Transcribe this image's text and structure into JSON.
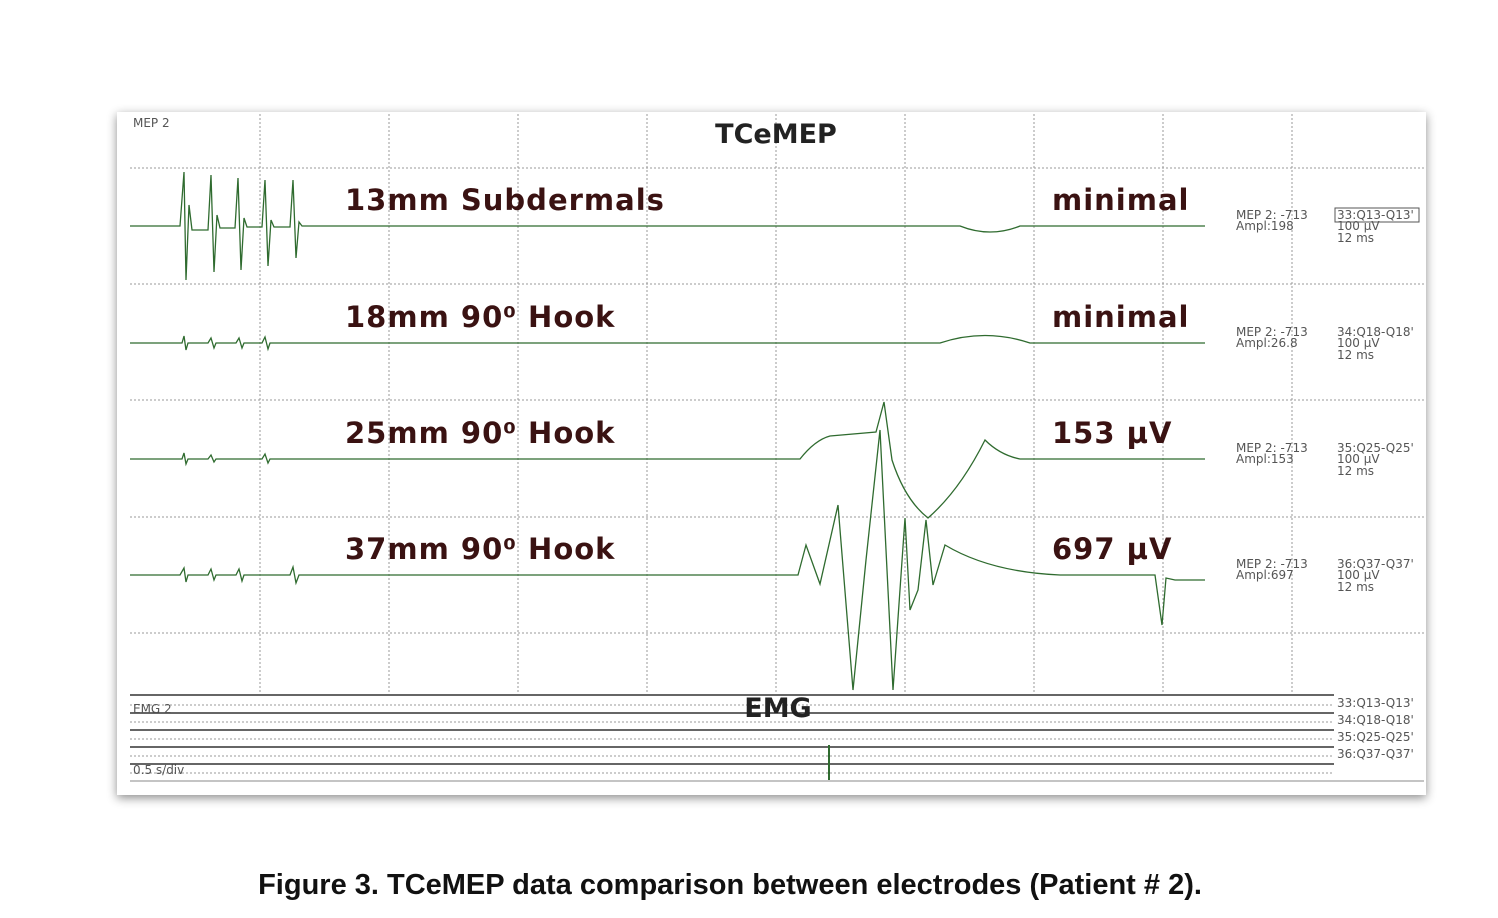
{
  "panel": {
    "corner_label": "MEP 2",
    "title": "TCeMEP"
  },
  "traces": [
    {
      "label": "13mm Subdermals",
      "result": "minimal",
      "info": [
        "MEP 2: -713",
        "Ampl:198"
      ],
      "channel": "33:Q13-Q13'",
      "scale": "100 µV",
      "sweep": "12 ms"
    },
    {
      "label": "18mm 90⁰ Hook",
      "result": "minimal",
      "info": [
        "MEP 2: -713",
        "Ampl:26.8"
      ],
      "channel": "34:Q18-Q18'",
      "scale": "100 µV",
      "sweep": "12 ms"
    },
    {
      "label": "25mm 90⁰ Hook",
      "result": "153 µV",
      "info": [
        "MEP 2: -713",
        "Ampl:153"
      ],
      "channel": "35:Q25-Q25'",
      "scale": "100 µV",
      "sweep": "12 ms"
    },
    {
      "label": "37mm 90⁰ Hook",
      "result": "697 µV",
      "info": [
        "MEP 2: -713",
        "Ampl:697"
      ],
      "channel": "36:Q37-Q37'",
      "scale": "100 µV",
      "sweep": "12 ms"
    }
  ],
  "emg": {
    "corner_label": "EMG 2",
    "title": "EMG",
    "timebase": "0.5 s/div",
    "channels": [
      "33:Q13-Q13'",
      "34:Q18-Q18'",
      "35:Q25-Q25'",
      "36:Q37-Q37'"
    ]
  },
  "caption": "Figure 3. TCeMEP data comparison between electrodes (Patient # 2)."
}
